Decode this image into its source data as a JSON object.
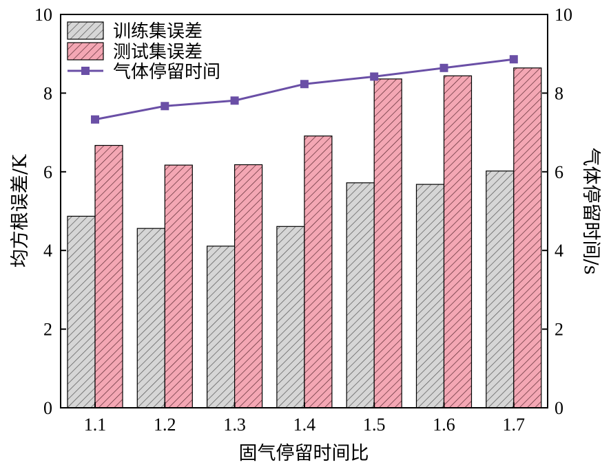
{
  "chart_data": {
    "type": "bar",
    "categories": [
      "1.1",
      "1.2",
      "1.3",
      "1.4",
      "1.5",
      "1.6",
      "1.7"
    ],
    "xlabel": "固气停留时间比",
    "ylabel": "均方根误差/K",
    "y2label": "气体停留时间/s",
    "ylim": [
      0,
      10
    ],
    "y2lim": [
      0,
      10
    ],
    "yticks": [
      0,
      2,
      4,
      6,
      8,
      10
    ],
    "y2ticks": [
      0,
      2,
      4,
      6,
      8,
      10
    ],
    "grid": false,
    "legend_position": "top-left",
    "series": [
      {
        "name": "训练集误差",
        "type": "bar",
        "axis": "left",
        "color": "#d3d3d3",
        "hatch": "diagonal",
        "values": [
          4.87,
          4.56,
          4.11,
          4.61,
          5.72,
          5.68,
          6.02
        ]
      },
      {
        "name": "测试集误差",
        "type": "bar",
        "axis": "left",
        "color": "#f4a7b4",
        "hatch": "diagonal",
        "values": [
          6.67,
          6.17,
          6.18,
          6.91,
          8.36,
          8.44,
          8.64
        ]
      },
      {
        "name": "气体停留时间",
        "type": "line",
        "axis": "right",
        "color": "#6a4fa6",
        "marker": "square",
        "values": [
          7.33,
          7.67,
          7.81,
          8.23,
          8.42,
          8.64,
          8.86
        ]
      }
    ]
  }
}
